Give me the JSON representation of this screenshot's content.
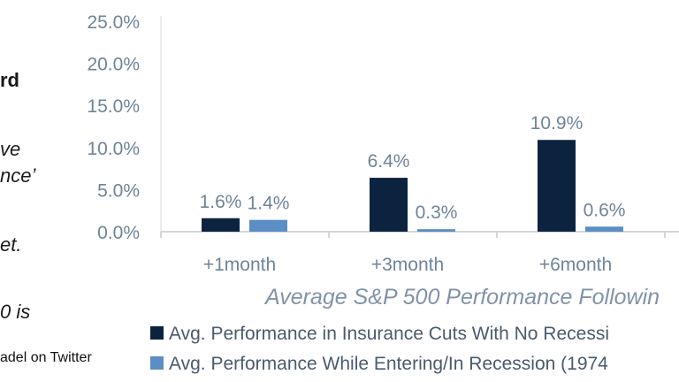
{
  "side_text": {
    "line1": "rd",
    "line2": "ve",
    "line3": "nce’",
    "line4": "et.",
    "line5": "0 is",
    "credit": "adel on Twitter"
  },
  "colors": {
    "series1": "#0c2340",
    "series2": "#5b8ec4",
    "axis_text": "#6f8499",
    "grid": "#d6d6d6"
  },
  "chart_data": {
    "type": "bar",
    "title": "",
    "xlabel": "Average S&P 500 Performance Followin",
    "ylabel": "",
    "categories": [
      "+1month",
      "+3month",
      "+6month"
    ],
    "ylim": [
      0,
      25
    ],
    "yticks": [
      "0.0%",
      "5.0%",
      "10.0%",
      "15.0%",
      "20.0%",
      "25.0%"
    ],
    "series": [
      {
        "name": "Avg. Performance in Insurance Cuts With No Recessi",
        "values": [
          1.6,
          6.4,
          10.9
        ],
        "labels": [
          "1.6%",
          "6.4%",
          "10.9%"
        ]
      },
      {
        "name": "Avg. Performance While Entering/In Recession (1974",
        "values": [
          1.4,
          0.3,
          0.6
        ],
        "labels": [
          "1.4%",
          "0.3%",
          "0.6%"
        ]
      }
    ],
    "grid": false,
    "legend_position": "bottom"
  }
}
